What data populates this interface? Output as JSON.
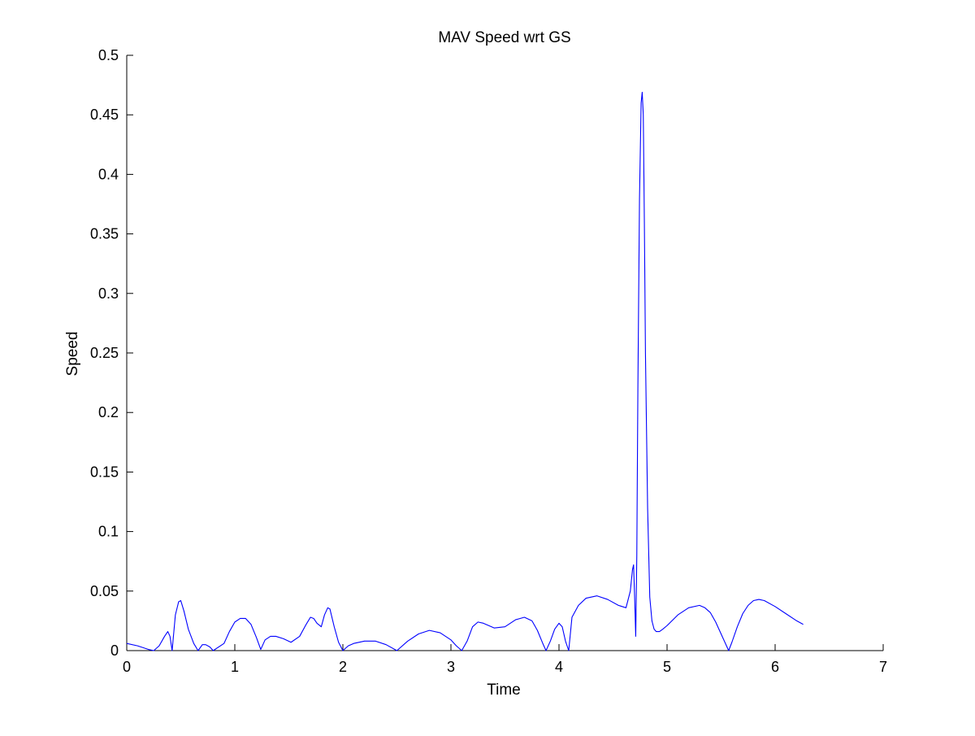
{
  "chart_data": {
    "type": "line",
    "title": "MAV Speed wrt GS",
    "xlabel": "Time",
    "ylabel": "Speed",
    "xlim": [
      0,
      7
    ],
    "ylim": [
      0,
      0.5
    ],
    "xticks": [
      0,
      1,
      2,
      3,
      4,
      5,
      6,
      7
    ],
    "xtick_labels": [
      "0",
      "1",
      "2",
      "3",
      "4",
      "5",
      "6",
      "7"
    ],
    "yticks": [
      0,
      0.05,
      0.1,
      0.15,
      0.2,
      0.25,
      0.3,
      0.35,
      0.4,
      0.45,
      0.5
    ],
    "ytick_labels": [
      "0",
      "0.05",
      "0.1",
      "0.15",
      "0.2",
      "0.25",
      "0.3",
      "0.35",
      "0.4",
      "0.45",
      "0.5"
    ],
    "grid": false,
    "box": "bottom-left axes only",
    "series": [
      {
        "color": "#0000ff",
        "x": [
          0.0,
          0.1,
          0.2,
          0.25,
          0.3,
          0.35,
          0.38,
          0.4,
          0.42,
          0.45,
          0.48,
          0.5,
          0.53,
          0.57,
          0.62,
          0.66,
          0.7,
          0.73,
          0.77,
          0.8,
          0.9,
          0.95,
          1.0,
          1.05,
          1.1,
          1.15,
          1.2,
          1.24,
          1.28,
          1.33,
          1.38,
          1.45,
          1.52,
          1.6,
          1.66,
          1.7,
          1.73,
          1.76,
          1.8,
          1.83,
          1.86,
          1.88,
          1.92,
          1.96,
          2.0,
          2.05,
          2.1,
          2.2,
          2.3,
          2.4,
          2.5,
          2.6,
          2.7,
          2.8,
          2.9,
          3.0,
          3.05,
          3.1,
          3.15,
          3.2,
          3.25,
          3.3,
          3.4,
          3.5,
          3.6,
          3.68,
          3.75,
          3.8,
          3.85,
          3.88,
          3.92,
          3.96,
          4.0,
          4.03,
          4.06,
          4.09,
          4.12,
          4.18,
          4.25,
          4.35,
          4.45,
          4.55,
          4.62,
          4.66,
          4.68,
          4.69,
          4.7,
          4.71,
          4.72,
          4.73,
          4.745,
          4.76,
          4.77,
          4.78,
          4.79,
          4.8,
          4.82,
          4.84,
          4.86,
          4.88,
          4.9,
          4.93,
          4.96,
          5.0,
          5.1,
          5.2,
          5.3,
          5.35,
          5.4,
          5.45,
          5.5,
          5.55,
          5.57,
          5.6,
          5.65,
          5.7,
          5.75,
          5.8,
          5.85,
          5.9,
          6.0,
          6.1,
          6.2,
          6.26
        ],
        "y": [
          0.006,
          0.004,
          0.001,
          0.0,
          0.004,
          0.012,
          0.016,
          0.012,
          0.0,
          0.03,
          0.041,
          0.042,
          0.033,
          0.018,
          0.006,
          0.0,
          0.005,
          0.005,
          0.003,
          0.0,
          0.006,
          0.016,
          0.024,
          0.027,
          0.027,
          0.022,
          0.011,
          0.001,
          0.009,
          0.012,
          0.012,
          0.01,
          0.007,
          0.012,
          0.022,
          0.028,
          0.027,
          0.023,
          0.02,
          0.03,
          0.036,
          0.035,
          0.02,
          0.007,
          0.0,
          0.004,
          0.006,
          0.008,
          0.008,
          0.005,
          0.0,
          0.008,
          0.014,
          0.017,
          0.015,
          0.009,
          0.004,
          0.0,
          0.008,
          0.02,
          0.024,
          0.023,
          0.019,
          0.02,
          0.026,
          0.028,
          0.025,
          0.017,
          0.006,
          0.0,
          0.008,
          0.018,
          0.023,
          0.02,
          0.008,
          0.0,
          0.028,
          0.038,
          0.044,
          0.046,
          0.043,
          0.038,
          0.036,
          0.05,
          0.068,
          0.072,
          0.045,
          0.012,
          0.08,
          0.22,
          0.38,
          0.46,
          0.469,
          0.45,
          0.36,
          0.25,
          0.12,
          0.045,
          0.025,
          0.018,
          0.016,
          0.016,
          0.018,
          0.021,
          0.03,
          0.036,
          0.038,
          0.036,
          0.032,
          0.024,
          0.014,
          0.004,
          0.0,
          0.007,
          0.02,
          0.031,
          0.038,
          0.042,
          0.043,
          0.042,
          0.037,
          0.031,
          0.025,
          0.022
        ]
      }
    ]
  }
}
